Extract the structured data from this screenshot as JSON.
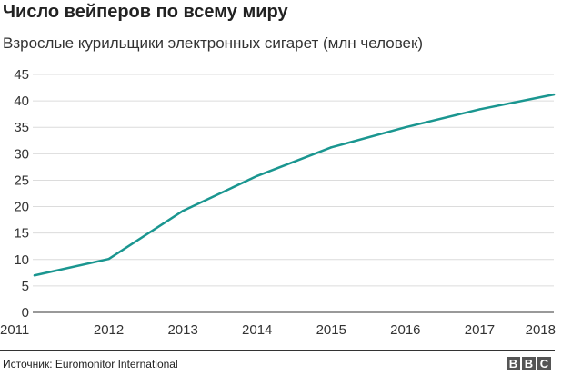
{
  "header": {
    "title": "Число вейперов по всему миру",
    "subtitle": "Взрослые курильщики электронных сигарет (млн человек)"
  },
  "footer": {
    "source": "Источник: Euromonitor International",
    "logo_letters": [
      "B",
      "B",
      "C"
    ]
  },
  "colors": {
    "line": "#1a9690",
    "grid": "#dcdcdc",
    "axis": "#333333"
  },
  "chart_data": {
    "type": "line",
    "title": "Число вейперов по всему миру",
    "subtitle": "Взрослые курильщики электронных сигарет (млн человек)",
    "x": [
      2011,
      2012,
      2013,
      2014,
      2015,
      2016,
      2017,
      2018
    ],
    "series": [
      {
        "values": [
          7.0,
          10.1,
          19.2,
          25.8,
          31.2,
          35.0,
          38.4,
          41.2
        ]
      }
    ],
    "xlim": [
      2011,
      2018
    ],
    "ylim": [
      0,
      45
    ],
    "y_ticks": [
      0,
      5,
      10,
      15,
      20,
      25,
      30,
      35,
      40,
      45
    ],
    "x_ticks": [
      2011,
      2012,
      2013,
      2014,
      2015,
      2016,
      2017,
      2018
    ],
    "grid": "horizontal",
    "legend": "none",
    "xlabel": "",
    "ylabel": ""
  }
}
